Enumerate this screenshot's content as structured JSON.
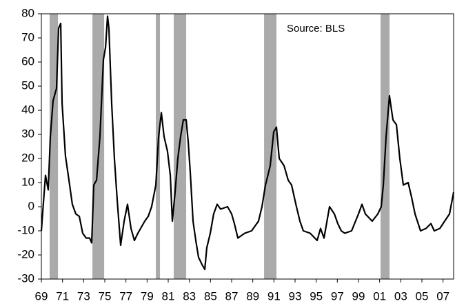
{
  "chart_data": {
    "type": "line",
    "annotation": "Source: BLS",
    "x": [
      1969.0,
      1969.2,
      1969.39,
      1969.65,
      1969.85,
      1970.11,
      1970.43,
      1970.63,
      1970.83,
      1970.96,
      1971.28,
      1971.61,
      1971.93,
      1972.26,
      1972.59,
      1972.91,
      1973.24,
      1973.57,
      1973.76,
      1973.96,
      1974.22,
      1974.54,
      1974.87,
      1975.07,
      1975.26,
      1975.39,
      1975.65,
      1975.91,
      1976.17,
      1976.5,
      1976.83,
      1977.15,
      1977.48,
      1977.8,
      1978.13,
      1978.78,
      1979.11,
      1979.43,
      1979.83,
      1980.09,
      1980.35,
      1980.61,
      1980.93,
      1981.2,
      1981.39,
      1981.65,
      1981.91,
      1982.17,
      1982.43,
      1982.7,
      1982.89,
      1983.09,
      1983.35,
      1983.61,
      1983.87,
      1984.2,
      1984.46,
      1984.65,
      1984.98,
      1985.3,
      1985.63,
      1985.96,
      1986.61,
      1987.0,
      1987.26,
      1987.59,
      1988.24,
      1988.89,
      1989.54,
      1989.87,
      1990.2,
      1990.65,
      1990.98,
      1991.24,
      1991.5,
      1991.96,
      1992.35,
      1992.67,
      1993.13,
      1993.46,
      1993.78,
      1994.43,
      1995.09,
      1995.41,
      1995.74,
      1996.26,
      1996.72,
      1997.04,
      1997.37,
      1997.7,
      1998.35,
      1999.0,
      1999.33,
      1999.65,
      2000.3,
      2000.83,
      2001.15,
      2001.35,
      2001.61,
      2001.93,
      2002.26,
      2002.59,
      2002.91,
      2003.24,
      2003.7,
      2004.02,
      2004.35,
      2004.87,
      2005.39,
      2005.85,
      2006.17,
      2006.7,
      2007.15,
      2007.61,
      2008.0
    ],
    "series": [
      {
        "color": "#000000",
        "values": [
          -10,
          2,
          13,
          7,
          29,
          44,
          49,
          74,
          76,
          43,
          21,
          11,
          1,
          -3,
          -4,
          -11,
          -13,
          -13,
          -15,
          9,
          11,
          29,
          61,
          66,
          79,
          74,
          43,
          20,
          3,
          -16,
          -6,
          1,
          -9,
          -14,
          -11,
          -6,
          -4,
          0,
          9,
          29,
          39,
          29,
          23,
          13,
          -6,
          6,
          20,
          29,
          36,
          36,
          27,
          14,
          -6,
          -14,
          -21,
          -24,
          -26,
          -17,
          -11,
          -3,
          1,
          -1,
          0,
          -3,
          -7,
          -13,
          -11,
          -10,
          -6,
          0,
          9,
          17,
          31,
          33,
          20,
          17,
          11,
          9,
          0,
          -6,
          -10,
          -11,
          -14,
          -9,
          -13,
          0,
          -3,
          -7,
          -10,
          -11,
          -10,
          -3,
          1,
          -3,
          -6,
          -3,
          0,
          9,
          29,
          46,
          36,
          34,
          20,
          9,
          10,
          4,
          -3,
          -10,
          -9,
          -7,
          -10,
          -9,
          -6,
          -3,
          6
        ]
      }
    ],
    "recessions": [
      [
        1969.78,
        1970.57
      ],
      [
        1973.83,
        1974.94
      ],
      [
        1979.83,
        1980.22
      ],
      [
        1981.52,
        1982.7
      ],
      [
        1990.07,
        1991.24
      ],
      [
        2001.09,
        2001.94
      ]
    ],
    "recession_color": "#aaaaaa",
    "xlim": [
      1969,
      2008
    ],
    "xticks": [
      {
        "value": 1969,
        "label": "69"
      },
      {
        "value": 1971,
        "label": "71"
      },
      {
        "value": 1973,
        "label": "73"
      },
      {
        "value": 1975,
        "label": "75"
      },
      {
        "value": 1977,
        "label": "77"
      },
      {
        "value": 1979,
        "label": "79"
      },
      {
        "value": 1981,
        "label": "81"
      },
      {
        "value": 1983,
        "label": "83"
      },
      {
        "value": 1985,
        "label": "85"
      },
      {
        "value": 1987,
        "label": "87"
      },
      {
        "value": 1989,
        "label": "89"
      },
      {
        "value": 1991,
        "label": "91"
      },
      {
        "value": 1993,
        "label": "93"
      },
      {
        "value": 1995,
        "label": "95"
      },
      {
        "value": 1997,
        "label": "97"
      },
      {
        "value": 1999,
        "label": "99"
      },
      {
        "value": 2001,
        "label": "01"
      },
      {
        "value": 2003,
        "label": "03"
      },
      {
        "value": 2005,
        "label": "05"
      },
      {
        "value": 2007,
        "label": "07"
      }
    ],
    "ylim": [
      -30,
      80
    ],
    "yticks": [
      -30,
      -20,
      -10,
      0,
      10,
      20,
      30,
      40,
      50,
      60,
      70,
      80
    ]
  }
}
